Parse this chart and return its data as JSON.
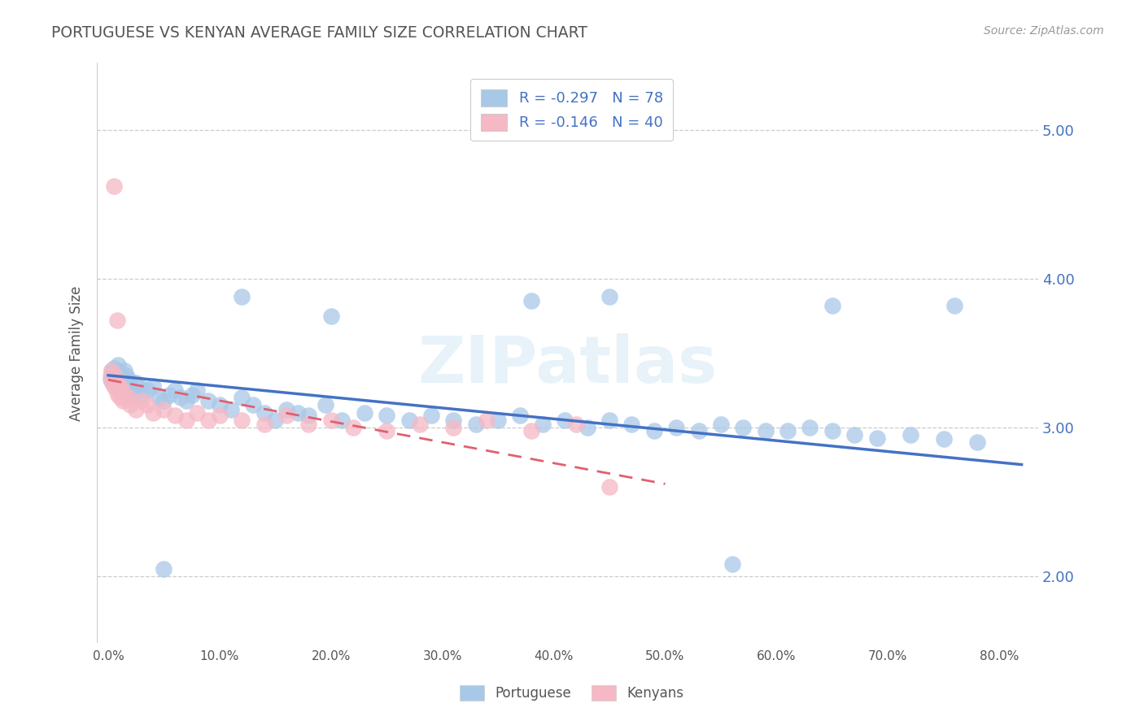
{
  "title": "PORTUGUESE VS KENYAN AVERAGE FAMILY SIZE CORRELATION CHART",
  "source": "Source: ZipAtlas.com",
  "ylabel": "Average Family Size",
  "xlabel_ticks": [
    "0.0%",
    "10.0%",
    "20.0%",
    "30.0%",
    "40.0%",
    "50.0%",
    "60.0%",
    "70.0%",
    "80.0%"
  ],
  "yticks": [
    2.0,
    3.0,
    4.0,
    5.0
  ],
  "xlim": [
    -0.01,
    0.835
  ],
  "ylim": [
    1.55,
    5.45
  ],
  "blue_R": "-0.297",
  "blue_N": "78",
  "pink_R": "-0.146",
  "pink_N": "40",
  "blue_color": "#a8c8e8",
  "pink_color": "#f5b8c4",
  "blue_line_color": "#4472c4",
  "pink_line_color": "#e06070",
  "legend_text_color": "#4472c4",
  "watermark": "ZIPatlas",
  "background_color": "#ffffff",
  "grid_color": "#cccccc",
  "title_color": "#555555",
  "source_color": "#999999",
  "blue_scatter_x": [
    0.002,
    0.003,
    0.004,
    0.005,
    0.006,
    0.007,
    0.008,
    0.009,
    0.01,
    0.011,
    0.012,
    0.013,
    0.015,
    0.016,
    0.017,
    0.018,
    0.02,
    0.022,
    0.025,
    0.028,
    0.03,
    0.035,
    0.04,
    0.045,
    0.05,
    0.055,
    0.06,
    0.065,
    0.07,
    0.075,
    0.08,
    0.09,
    0.1,
    0.11,
    0.12,
    0.13,
    0.14,
    0.15,
    0.16,
    0.17,
    0.18,
    0.195,
    0.21,
    0.23,
    0.25,
    0.27,
    0.29,
    0.31,
    0.33,
    0.35,
    0.37,
    0.39,
    0.41,
    0.43,
    0.45,
    0.47,
    0.49,
    0.51,
    0.53,
    0.55,
    0.57,
    0.59,
    0.61,
    0.63,
    0.65,
    0.67,
    0.69,
    0.72,
    0.75,
    0.78,
    0.12,
    0.2,
    0.38,
    0.45,
    0.65,
    0.76,
    0.05,
    0.56
  ],
  "blue_scatter_y": [
    3.32,
    3.38,
    3.35,
    3.4,
    3.3,
    3.35,
    3.38,
    3.42,
    3.28,
    3.35,
    3.3,
    3.25,
    3.38,
    3.35,
    3.28,
    3.32,
    3.25,
    3.22,
    3.3,
    3.28,
    3.22,
    3.25,
    3.28,
    3.2,
    3.18,
    3.22,
    3.25,
    3.2,
    3.18,
    3.22,
    3.25,
    3.18,
    3.15,
    3.12,
    3.2,
    3.15,
    3.1,
    3.05,
    3.12,
    3.1,
    3.08,
    3.15,
    3.05,
    3.1,
    3.08,
    3.05,
    3.08,
    3.05,
    3.02,
    3.05,
    3.08,
    3.02,
    3.05,
    3.0,
    3.05,
    3.02,
    2.98,
    3.0,
    2.98,
    3.02,
    3.0,
    2.98,
    2.98,
    3.0,
    2.98,
    2.95,
    2.93,
    2.95,
    2.92,
    2.9,
    3.88,
    3.75,
    3.85,
    3.88,
    3.82,
    3.82,
    2.05,
    2.08
  ],
  "pink_scatter_x": [
    0.002,
    0.003,
    0.004,
    0.005,
    0.006,
    0.007,
    0.008,
    0.009,
    0.01,
    0.011,
    0.012,
    0.013,
    0.015,
    0.018,
    0.02,
    0.025,
    0.03,
    0.035,
    0.04,
    0.05,
    0.06,
    0.07,
    0.08,
    0.09,
    0.1,
    0.12,
    0.14,
    0.16,
    0.18,
    0.2,
    0.22,
    0.25,
    0.28,
    0.31,
    0.34,
    0.38,
    0.42,
    0.45,
    0.005,
    0.008
  ],
  "pink_scatter_y": [
    3.35,
    3.38,
    3.3,
    3.28,
    3.35,
    3.25,
    3.3,
    3.22,
    3.28,
    3.2,
    3.25,
    3.18,
    3.22,
    3.2,
    3.15,
    3.12,
    3.18,
    3.15,
    3.1,
    3.12,
    3.08,
    3.05,
    3.1,
    3.05,
    3.08,
    3.05,
    3.02,
    3.08,
    3.02,
    3.05,
    3.0,
    2.98,
    3.02,
    3.0,
    3.05,
    2.98,
    3.02,
    2.6,
    4.62,
    3.72
  ]
}
